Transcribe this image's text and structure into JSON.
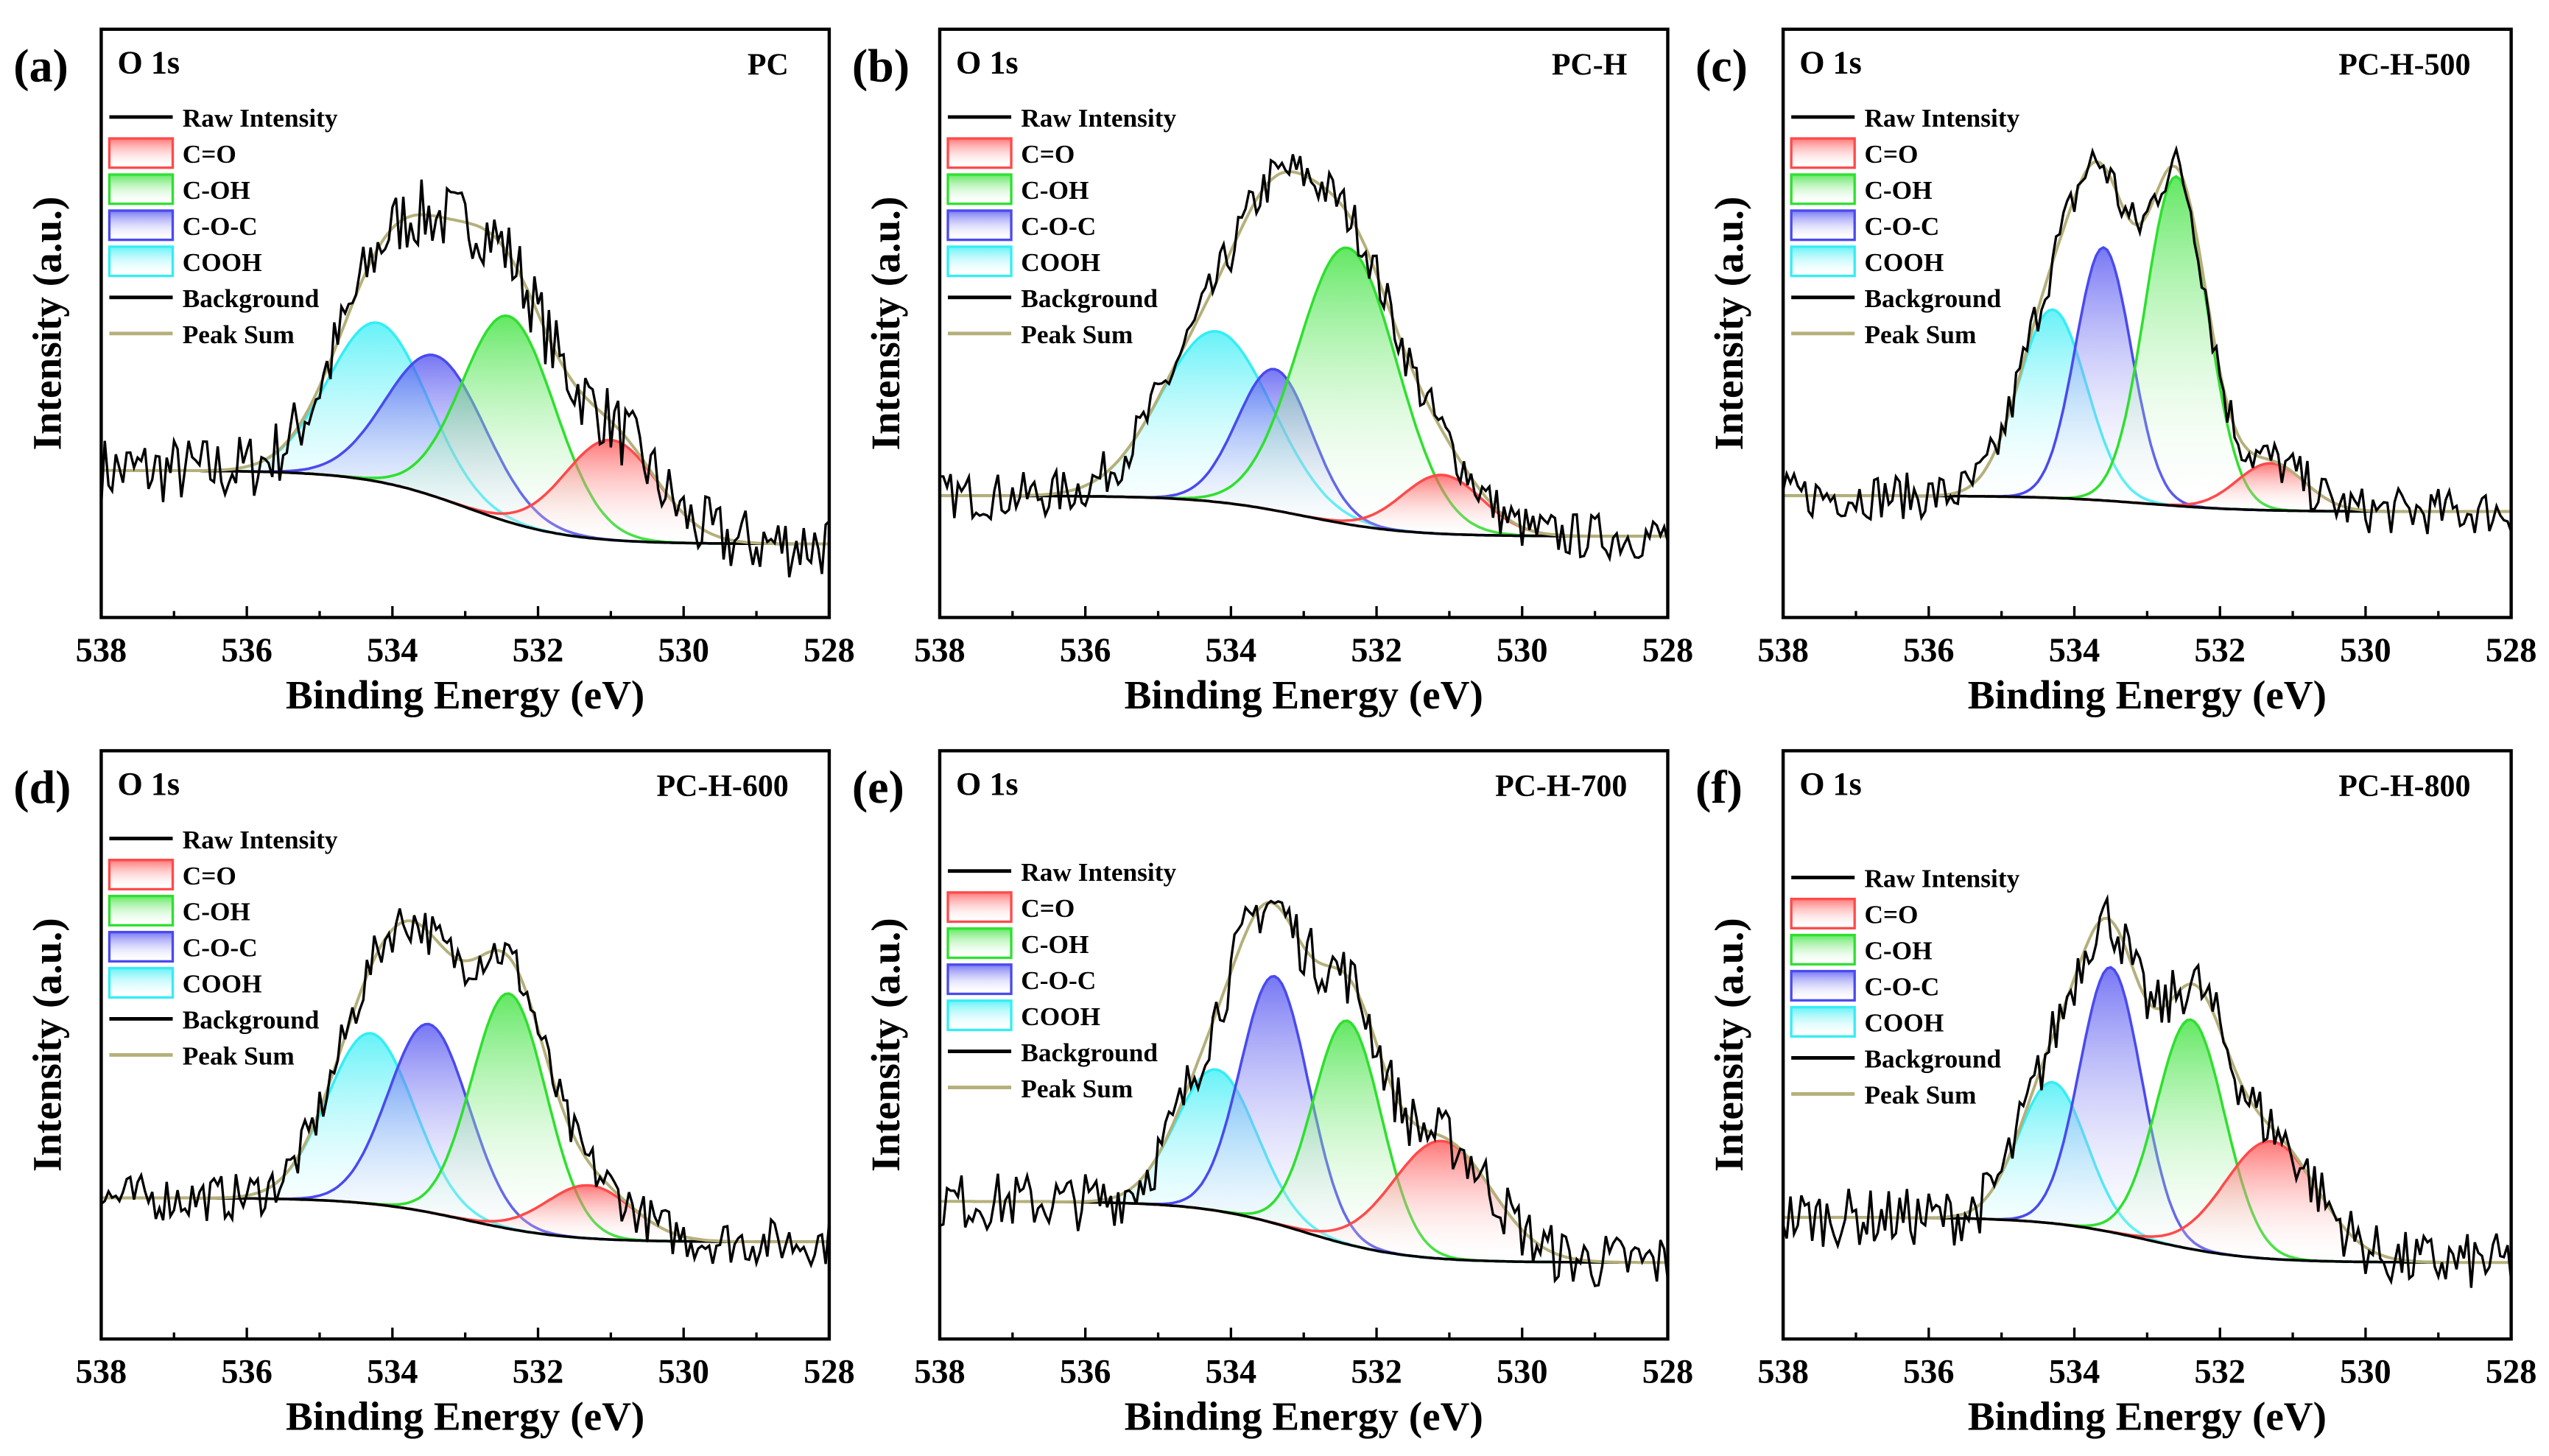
{
  "chart_data": [
    {
      "panel": "(a)",
      "type": "line",
      "core": "O 1s",
      "sample": "PC",
      "xlabel": "Binding Energy (eV)",
      "ylabel": "Intensity (a.u.)",
      "xlim": [
        538,
        528
      ],
      "ylim": [
        0,
        100
      ],
      "xticks": [
        538,
        536,
        534,
        532,
        530,
        528
      ],
      "background": {
        "left": 25,
        "right": 12.5,
        "center": 533.0
      },
      "peaks": [
        {
          "name": "C=O",
          "center": 531.0,
          "amp": 17,
          "fwhm": 1.5
        },
        {
          "name": "C-OH",
          "center": 532.4,
          "amp": 35,
          "fwhm": 1.5
        },
        {
          "name": "C-O-C",
          "center": 533.4,
          "amp": 24,
          "fwhm": 1.6
        },
        {
          "name": "COOH",
          "center": 534.2,
          "amp": 27,
          "fwhm": 1.6
        }
      ],
      "noise": 6
    },
    {
      "panel": "(b)",
      "type": "line",
      "core": "O 1s",
      "sample": "PC-H",
      "xlabel": "Binding Energy (eV)",
      "ylabel": "Intensity (a.u.)",
      "xlim": [
        538,
        528
      ],
      "ylim": [
        0,
        100
      ],
      "xticks": [
        538,
        536,
        534,
        532,
        530,
        528
      ],
      "background": {
        "left": 20.7,
        "right": 13.8,
        "center": 533.0
      },
      "peaks": [
        {
          "name": "C=O",
          "center": 531.1,
          "amp": 10,
          "fwhm": 1.3
        },
        {
          "name": "C-OH",
          "center": 532.4,
          "amp": 47,
          "fwhm": 1.6
        },
        {
          "name": "C-O-C",
          "center": 533.4,
          "amp": 24,
          "fwhm": 1.2
        },
        {
          "name": "COOH",
          "center": 534.2,
          "amp": 29,
          "fwhm": 1.8
        }
      ],
      "noise": 4
    },
    {
      "panel": "(c)",
      "type": "line",
      "core": "O 1s",
      "sample": "PC-H-500",
      "xlabel": "Binding Energy (eV)",
      "ylabel": "Intensity (a.u.)",
      "xlim": [
        538,
        528
      ],
      "ylim": [
        0,
        100
      ],
      "xticks": [
        538,
        536,
        534,
        532,
        530,
        528
      ],
      "background": {
        "left": 20.7,
        "right": 18,
        "center": 533.0
      },
      "peaks": [
        {
          "name": "C=O",
          "center": 531.3,
          "amp": 8,
          "fwhm": 1.1
        },
        {
          "name": "C-OH",
          "center": 532.6,
          "amp": 56,
          "fwhm": 1.0
        },
        {
          "name": "C-O-C",
          "center": 533.6,
          "amp": 43,
          "fwhm": 0.9
        },
        {
          "name": "COOH",
          "center": 534.3,
          "amp": 32,
          "fwhm": 1.1
        }
      ],
      "noise": 4
    },
    {
      "panel": "(d)",
      "type": "line",
      "core": "O 1s",
      "sample": "PC-H-600",
      "xlabel": "Binding Energy (eV)",
      "ylabel": "Intensity (a.u.)",
      "xlim": [
        538,
        528
      ],
      "ylim": [
        0,
        100
      ],
      "xticks": [
        538,
        536,
        534,
        532,
        530,
        528
      ],
      "background": {
        "left": 24,
        "right": 16.5,
        "center": 533.0
      },
      "peaks": [
        {
          "name": "C=O",
          "center": 531.3,
          "amp": 9,
          "fwhm": 1.4
        },
        {
          "name": "C-OH",
          "center": 532.4,
          "amp": 40,
          "fwhm": 1.2
        },
        {
          "name": "C-O-C",
          "center": 533.5,
          "amp": 32,
          "fwhm": 1.3
        },
        {
          "name": "COOH",
          "center": 534.3,
          "amp": 29,
          "fwhm": 1.4
        }
      ],
      "noise": 4
    },
    {
      "panel": "(e)",
      "type": "line",
      "core": "O 1s",
      "sample": "PC-H-700",
      "xlabel": "Binding Energy (eV)",
      "ylabel": "Intensity (a.u.)",
      "xlim": [
        538,
        528
      ],
      "ylim": [
        0,
        100
      ],
      "xticks": [
        538,
        536,
        534,
        532,
        530,
        528
      ],
      "background": {
        "left": 23.4,
        "right": 13,
        "center": 533.0
      },
      "peaks": [
        {
          "name": "C=O",
          "center": 531.1,
          "amp": 20,
          "fwhm": 1.6
        },
        {
          "name": "C-OH",
          "center": 532.4,
          "amp": 38,
          "fwhm": 1.1
        },
        {
          "name": "C-O-C",
          "center": 533.4,
          "amp": 42,
          "fwhm": 1.1
        },
        {
          "name": "COOH",
          "center": 534.2,
          "amp": 24,
          "fwhm": 1.3
        }
      ],
      "noise": 5
    },
    {
      "panel": "(f)",
      "type": "line",
      "core": "O 1s",
      "sample": "PC-H-800",
      "xlabel": "Binding Energy (eV)",
      "ylabel": "Intensity (a.u.)",
      "xlim": [
        538,
        528
      ],
      "ylim": [
        0,
        100
      ],
      "xticks": [
        538,
        536,
        534,
        532,
        530,
        528
      ],
      "background": {
        "left": 20.7,
        "right": 13,
        "center": 533.0
      },
      "peaks": [
        {
          "name": "C=O",
          "center": 531.3,
          "amp": 20,
          "fwhm": 1.5
        },
        {
          "name": "C-OH",
          "center": 532.4,
          "amp": 39,
          "fwhm": 1.1
        },
        {
          "name": "C-O-C",
          "center": 533.5,
          "amp": 45,
          "fwhm": 1.0
        },
        {
          "name": "COOH",
          "center": 534.3,
          "amp": 24,
          "fwhm": 1.1
        }
      ],
      "noise": 5
    }
  ],
  "legend": [
    "Raw Intensity",
    "C=O",
    "C-OH",
    "C-O-C",
    "COOH",
    "Background",
    "Peak Sum"
  ],
  "colors": {
    "C=O": "#ff4a4a",
    "C-OH": "#2ee02e",
    "C-O-C": "#4a4af0",
    "COOH": "#33eef5",
    "Raw Intensity": "#000000",
    "Background": "#000000",
    "Peak Sum": "#b5b07a"
  }
}
